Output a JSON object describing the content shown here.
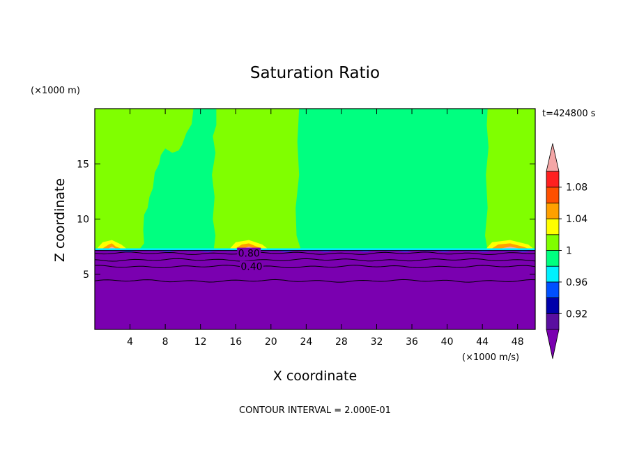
{
  "chart_data": {
    "type": "heatmap",
    "title": "Saturation Ratio",
    "xlabel": "X coordinate",
    "ylabel": "Z coordinate",
    "x_unit": "(×1000 m/s)",
    "y_unit": "(×1000 m)",
    "time_label": "t=424800 s",
    "footer": "CONTOUR INTERVAL = 2.000E-01",
    "xlim": [
      0,
      50
    ],
    "ylim": [
      0,
      20
    ],
    "x_ticks": [
      {
        "value": 4,
        "label": "4"
      },
      {
        "value": 8,
        "label": "8"
      },
      {
        "value": 12,
        "label": "12"
      },
      {
        "value": 16,
        "label": "16"
      },
      {
        "value": 20,
        "label": "20"
      },
      {
        "value": 24,
        "label": "24"
      },
      {
        "value": 28,
        "label": "28"
      },
      {
        "value": 32,
        "label": "32"
      },
      {
        "value": 36,
        "label": "36"
      },
      {
        "value": 40,
        "label": "40"
      },
      {
        "value": 44,
        "label": "44"
      },
      {
        "value": 48,
        "label": "48"
      }
    ],
    "y_ticks": [
      {
        "value": 5,
        "label": "5"
      },
      {
        "value": 10,
        "label": "10"
      },
      {
        "value": 15,
        "label": "15"
      }
    ],
    "contour_labels": [
      {
        "text": "0.80",
        "x": 17.5,
        "z": 6.9
      },
      {
        "text": "0.40",
        "x": 17.8,
        "z": 5.7
      }
    ],
    "colorbar": {
      "levels": [
        0.9,
        0.92,
        0.94,
        0.96,
        0.98,
        1.0,
        1.02,
        1.04,
        1.06,
        1.08,
        1.1
      ],
      "colors": [
        "#5a0fa0",
        "#0000aa",
        "#0050ff",
        "#00f0ff",
        "#00ff80",
        "#80ff00",
        "#ffff00",
        "#ffa000",
        "#ff5000",
        "#ff2020"
      ],
      "under_color": "#7a00b0",
      "over_color": "#f4a6a6",
      "tick_labels": [
        {
          "value": 0.92,
          "label": "0.92"
        },
        {
          "value": 0.96,
          "label": "0.96"
        },
        {
          "value": 1.0,
          "label": "1"
        },
        {
          "value": 1.04,
          "label": "1.04"
        },
        {
          "value": 1.08,
          "label": "1.08"
        }
      ]
    },
    "regions": [
      {
        "name": "subsaturated",
        "value_range": "< 0.90",
        "color": "#7a00b0",
        "z_top": 7.2
      },
      {
        "name": "ratio 0.98-1.00",
        "value_range": "0.98-1.00",
        "color": "#00ff80",
        "x_ranges": [
          [
            5,
            14
          ],
          [
            23,
            44.5
          ]
        ]
      },
      {
        "name": "ratio 1.00-1.02",
        "value_range": "1.00-1.02",
        "color": "#80ff00",
        "x_ranges": [
          [
            0,
            5
          ],
          [
            14,
            23
          ],
          [
            44.5,
            50
          ]
        ]
      },
      {
        "name": "ratio 1.02-1.04 patches",
        "value_range": "1.02-1.04",
        "color": "#ffff00",
        "x_centers": [
          2,
          16.5,
          47
        ]
      }
    ],
    "contour_lines_z": [
      4.4,
      5.7,
      6.3,
      6.9
    ]
  }
}
